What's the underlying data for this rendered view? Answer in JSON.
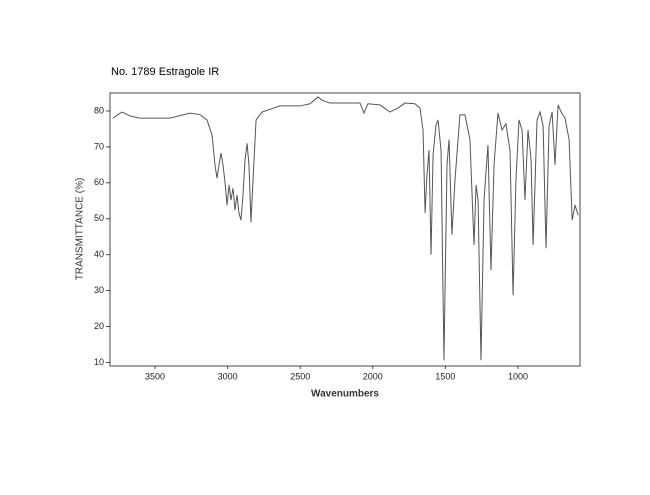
{
  "chart_data": {
    "type": "line",
    "title": "No. 1789 Estragole IR",
    "x_label": "Wavenumbers",
    "y_label": "TRANSMITTANCE (%)",
    "xlim": [
      3810,
      573
    ],
    "ylim": [
      9,
      85
    ],
    "xticks": [
      3500,
      3000,
      2500,
      2000,
      1500,
      1000
    ],
    "yticks": [
      10,
      20,
      30,
      40,
      50,
      60,
      70,
      80
    ],
    "grid": false,
    "color": "#555555",
    "x": [
      3789,
      3755,
      3727,
      3672,
      3603,
      3397,
      3259,
      3190,
      3142,
      3107,
      3087,
      3073,
      3059,
      3045,
      3032,
      3018,
      3004,
      2990,
      2977,
      2963,
      2949,
      2935,
      2922,
      2908,
      2894,
      2880,
      2866,
      2853,
      2839,
      2825,
      2804,
      2763,
      2639,
      2501,
      2433,
      2377,
      2350,
      2295,
      2157,
      2088,
      2061,
      2033,
      1951,
      1882,
      1827,
      1778,
      1710,
      1675,
      1654,
      1640,
      1627,
      1613,
      1599,
      1585,
      1565,
      1551,
      1530,
      1510,
      1489,
      1475,
      1455,
      1434,
      1400,
      1365,
      1331,
      1303,
      1289,
      1275,
      1255,
      1234,
      1207,
      1186,
      1165,
      1138,
      1110,
      1083,
      1055,
      1034,
      1014,
      993,
      972,
      952,
      931,
      910,
      896,
      869,
      848,
      827,
      807,
      786,
      765,
      745,
      724,
      703,
      676,
      648,
      627,
      607,
      586
    ],
    "y": [
      78,
      79,
      79.7,
      78.6,
      78,
      78,
      79.4,
      79,
      77.5,
      73.3,
      65,
      61.3,
      65,
      68.3,
      65,
      60.2,
      53.8,
      59.4,
      55.2,
      58.5,
      52.4,
      56.6,
      51.6,
      49.6,
      56.6,
      66.4,
      71,
      65,
      49,
      60.8,
      77.5,
      79.7,
      81.4,
      81.4,
      82,
      83.9,
      83,
      82.2,
      82.2,
      82.2,
      79.4,
      82,
      81.7,
      79.7,
      80.8,
      82.2,
      82,
      80.8,
      74.7,
      51.6,
      62.2,
      69.1,
      40,
      67.7,
      76,
      77.5,
      69,
      10.6,
      65,
      72,
      45.5,
      60.8,
      78.9,
      78.9,
      72,
      42.7,
      59.4,
      55.2,
      10.6,
      55.2,
      70.5,
      35.7,
      65,
      79.4,
      74.7,
      76.4,
      69,
      28.7,
      60.8,
      77.5,
      74.7,
      55.2,
      74.7,
      66.4,
      42.7,
      77.5,
      79.7,
      75.8,
      41.8,
      75.8,
      79.7,
      65,
      81.7,
      79.7,
      78,
      72,
      49.6,
      53.8,
      51
    ]
  }
}
